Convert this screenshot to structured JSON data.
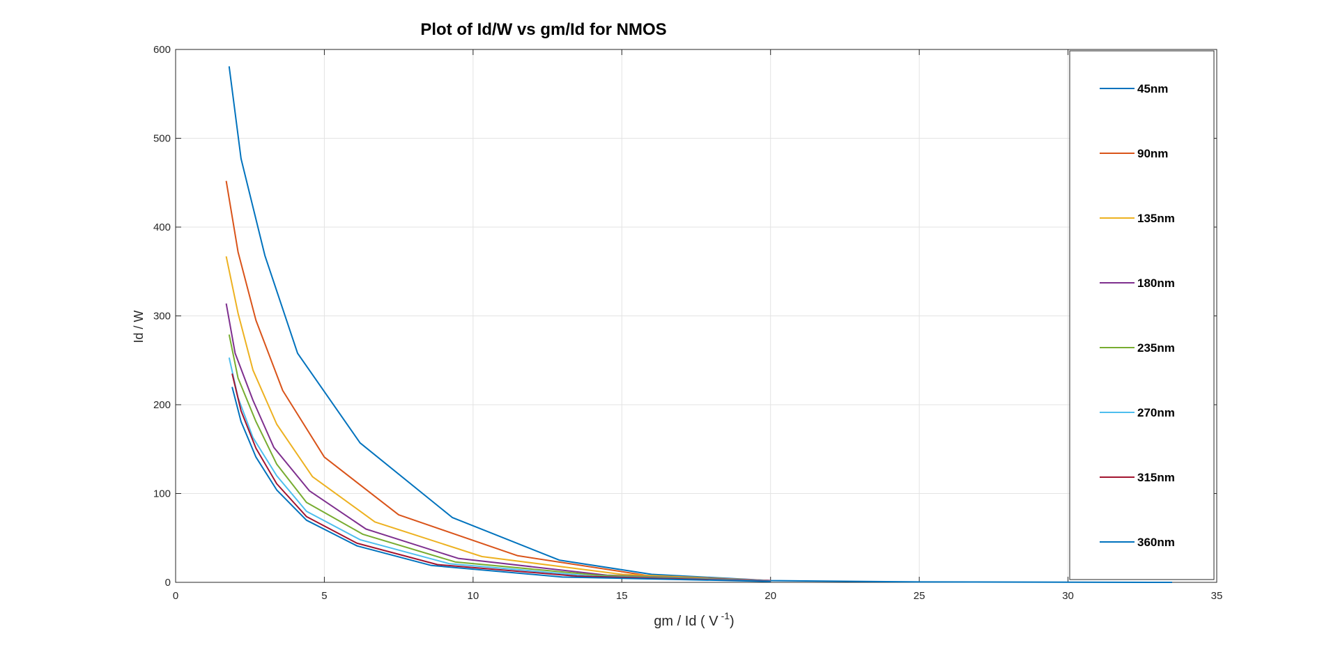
{
  "chart_data": {
    "type": "line",
    "title": "Plot of Id/W vs gm/Id for NMOS",
    "xlabel": "gm / Id ( V",
    "xlabel_exponent": "-1",
    "xlabel_suffix": ")",
    "ylabel": "Id / W",
    "xlim": [
      0,
      35
    ],
    "ylim": [
      0,
      600
    ],
    "xticks": [
      0,
      5,
      10,
      15,
      20,
      25,
      30,
      35
    ],
    "yticks": [
      0,
      100,
      200,
      300,
      400,
      500,
      600
    ],
    "grid": true,
    "legend_position": "right",
    "series": [
      {
        "name": "45nm",
        "color": "#0072BD",
        "x": [
          1.8,
          2.2,
          3.0,
          4.1,
          6.2,
          9.3,
          12.9,
          16.0,
          20.0,
          25.0,
          33.5
        ],
        "y": [
          581,
          477,
          368,
          258,
          157,
          73,
          25,
          9,
          2,
          0.5,
          0
        ]
      },
      {
        "name": "90nm",
        "color": "#D95319",
        "x": [
          1.7,
          2.1,
          2.7,
          3.6,
          5.0,
          7.5,
          11.5,
          16.0,
          20.0
        ],
        "y": [
          452,
          372,
          295,
          216,
          141,
          76,
          30,
          7,
          2
        ]
      },
      {
        "name": "135nm",
        "color": "#EDB120",
        "x": [
          1.7,
          2.1,
          2.6,
          3.4,
          4.6,
          6.7,
          10.3,
          15.0,
          20.0
        ],
        "y": [
          367,
          303,
          239,
          178,
          119,
          68,
          29,
          9,
          2
        ]
      },
      {
        "name": "180nm",
        "color": "#7E2F8E",
        "x": [
          1.7,
          2.0,
          2.6,
          3.3,
          4.5,
          6.4,
          9.5,
          14.5,
          20.0
        ],
        "y": [
          314,
          258,
          205,
          152,
          103,
          60,
          27,
          8,
          2
        ]
      },
      {
        "name": "235nm",
        "color": "#77AC30",
        "x": [
          1.8,
          2.1,
          2.7,
          3.4,
          4.4,
          6.3,
          9.4,
          14.2,
          20.0
        ],
        "y": [
          279,
          230,
          181,
          133,
          90,
          54,
          23,
          8,
          1.5
        ]
      },
      {
        "name": "270nm",
        "color": "#4DBEEE",
        "x": [
          1.8,
          2.1,
          2.6,
          3.4,
          4.4,
          6.2,
          9.2,
          14.0,
          20.0
        ],
        "y": [
          253,
          208,
          163,
          120,
          80,
          48,
          21,
          7,
          1.5
        ]
      },
      {
        "name": "315nm",
        "color": "#A2142F",
        "x": [
          1.9,
          2.2,
          2.7,
          3.4,
          4.4,
          6.1,
          8.8,
          13.5,
          20.0
        ],
        "y": [
          235,
          193,
          151,
          111,
          74,
          44,
          20,
          7,
          1.2
        ]
      },
      {
        "name": "360nm",
        "color": "#0072BD",
        "x": [
          1.9,
          2.2,
          2.7,
          3.4,
          4.4,
          6.1,
          8.6,
          13.0,
          20.0
        ],
        "y": [
          220,
          181,
          141,
          104,
          70,
          41,
          19,
          6,
          1
        ]
      }
    ]
  }
}
